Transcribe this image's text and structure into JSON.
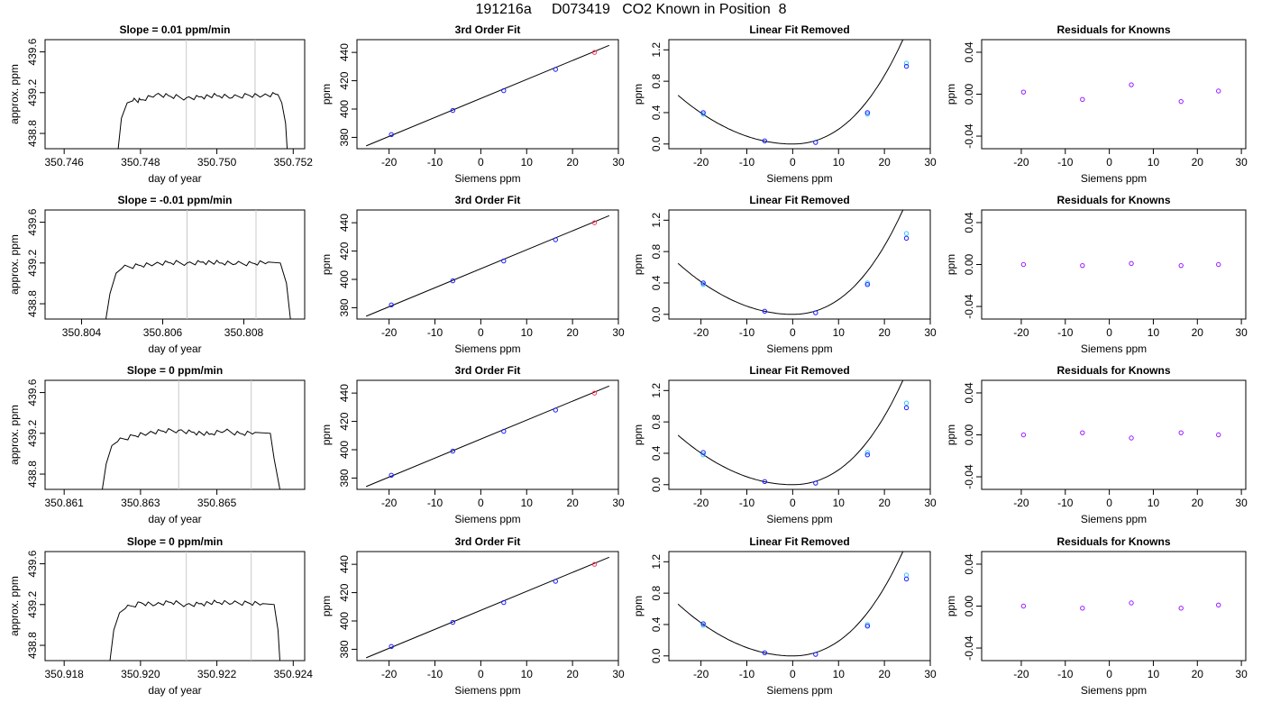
{
  "title": "191216a     D073419   CO2 Known in Position  8",
  "colors": {
    "curve": "#000000",
    "point_blue": "#1a1aff",
    "point_cyan": "#33c3ff",
    "point_red": "#ff3355",
    "point_purple": "#9a1aff",
    "vline": "#c8c8c8"
  },
  "chart_data": [
    {
      "panel": "timeseries",
      "row": 1,
      "type": "line",
      "title": "Slope =  0.01  ppm/min",
      "xlabel": "day of year",
      "ylabel": "approx. ppm",
      "xlim": [
        350.7455,
        350.7523
      ],
      "ylim": [
        438.65,
        439.72
      ],
      "xticks": [
        350.746,
        350.748,
        350.75,
        350.752
      ],
      "xtick_labels": [
        "350.746",
        "350.748",
        "350.750",
        "350.752"
      ],
      "yticks": [
        438.8,
        439.2,
        439.6
      ],
      "ytick_labels": [
        "438.8",
        "439.2",
        "439.6"
      ],
      "vlines": [
        350.7492,
        350.751
      ],
      "series": [
        {
          "x": [
            350.7474,
            350.7475,
            350.74765,
            350.7478,
            350.748,
            350.7484,
            350.7488,
            350.7492,
            350.7496,
            350.75,
            350.7504,
            350.7508,
            350.7512,
            350.7516,
            350.7517,
            350.7518,
            350.75185
          ],
          "y": [
            438.6,
            438.95,
            439.1,
            439.12,
            439.13,
            439.18,
            439.16,
            439.15,
            439.16,
            439.17,
            439.15,
            439.18,
            439.17,
            439.18,
            439.1,
            438.9,
            438.6
          ]
        }
      ]
    },
    {
      "panel": "fit",
      "row": 1,
      "type": "scatter",
      "title": "3rd Order Fit",
      "xlabel": "Siemens ppm",
      "ylabel": "ppm",
      "xlim": [
        -27,
        30
      ],
      "ylim": [
        372,
        449
      ],
      "xticks": [
        -20,
        -10,
        0,
        10,
        20,
        30
      ],
      "xtick_labels": [
        "-20",
        "-10",
        "0",
        "10",
        "20",
        "30"
      ],
      "yticks": [
        380,
        400,
        420,
        440
      ],
      "ytick_labels": [
        "380",
        "400",
        "420",
        "440"
      ],
      "points_x": [
        -19.5,
        -6.1,
        5.0,
        16.3,
        24.8
      ],
      "points_y": [
        382,
        399,
        413,
        428,
        440
      ],
      "curve": {
        "x": [
          -25,
          28
        ],
        "y": [
          374,
          445
        ]
      }
    },
    {
      "panel": "linear_removed",
      "row": 1,
      "type": "scatter",
      "title": "Linear Fit Removed",
      "xlabel": "Siemens ppm",
      "ylabel": "ppm",
      "xlim": [
        -27,
        30
      ],
      "ylim": [
        -0.06,
        1.33
      ],
      "xticks": [
        -20,
        -10,
        0,
        10,
        20,
        30
      ],
      "xtick_labels": [
        "-20",
        "-10",
        "0",
        "10",
        "20",
        "30"
      ],
      "yticks": [
        0.0,
        0.4,
        0.8,
        1.2
      ],
      "ytick_labels": [
        "0.0",
        "0.4",
        "0.8",
        "1.2"
      ],
      "points_x": [
        -19.5,
        -6.1,
        5.0,
        16.3,
        24.8
      ],
      "points_y": [
        0.4,
        0.04,
        0.02,
        0.4,
        0.99
      ],
      "alt_x": [
        -19.5,
        16.3,
        24.8
      ],
      "alt_y": [
        0.38,
        0.38,
        1.03
      ],
      "curve": {
        "x": [
          -25,
          28
        ],
        "y": [
          0.62,
          1.24
        ]
      }
    },
    {
      "panel": "residuals",
      "row": 1,
      "type": "scatter",
      "title": "Residuals for Knowns",
      "xlabel": "Siemens ppm",
      "ylabel": "ppm",
      "xlim": [
        -29,
        31
      ],
      "ylim": [
        -0.052,
        0.052
      ],
      "xticks": [
        -20,
        -10,
        0,
        10,
        20,
        30
      ],
      "xtick_labels": [
        "-20",
        "-10",
        "0",
        "10",
        "20",
        "30"
      ],
      "yticks": [
        -0.04,
        0.0,
        0.04
      ],
      "ytick_labels": [
        "-0.04",
        "0.00",
        "0.04"
      ],
      "points_x": [
        -19.5,
        -6.1,
        5.0,
        16.3,
        24.8
      ],
      "points_y": [
        0.002,
        -0.005,
        0.009,
        -0.007,
        0.003
      ]
    },
    {
      "panel": "timeseries",
      "row": 2,
      "type": "line",
      "title": "Slope =  -0.01  ppm/min",
      "xlabel": "day of year",
      "ylabel": "approx. ppm",
      "xlim": [
        350.8031,
        350.8095
      ],
      "ylim": [
        438.65,
        439.72
      ],
      "xticks": [
        350.804,
        350.806,
        350.808
      ],
      "xtick_labels": [
        "350.804",
        "350.806",
        "350.808"
      ],
      "vlines": [
        350.8066,
        350.8083
      ],
      "yticks": [
        438.8,
        439.2,
        439.6
      ],
      "ytick_labels": [
        "438.8",
        "439.2",
        "439.6"
      ],
      "series": [
        {
          "x": [
            350.8046,
            350.8047,
            350.80485,
            350.805,
            350.8054,
            350.8058,
            350.8062,
            350.8066,
            350.807,
            350.8074,
            350.8078,
            350.8082,
            350.8086,
            350.8089,
            350.80905,
            350.80915
          ],
          "y": [
            438.65,
            438.9,
            439.1,
            439.15,
            439.18,
            439.19,
            439.2,
            439.2,
            439.21,
            439.2,
            439.19,
            439.2,
            439.21,
            439.2,
            439.0,
            438.65
          ]
        }
      ]
    },
    {
      "panel": "fit",
      "row": 2,
      "type": "scatter",
      "title": "3rd Order Fit",
      "xlabel": "Siemens ppm",
      "ylabel": "ppm",
      "xlim": [
        -27,
        30
      ],
      "ylim": [
        372,
        449
      ],
      "xticks": [
        -20,
        -10,
        0,
        10,
        20,
        30
      ],
      "xtick_labels": [
        "-20",
        "-10",
        "0",
        "10",
        "20",
        "30"
      ],
      "yticks": [
        380,
        400,
        420,
        440
      ],
      "ytick_labels": [
        "380",
        "400",
        "420",
        "440"
      ],
      "points_x": [
        -19.5,
        -6.1,
        5.0,
        16.3,
        24.8
      ],
      "points_y": [
        382,
        399,
        413,
        428,
        440
      ],
      "curve": {
        "x": [
          -25,
          28
        ],
        "y": [
          374,
          445
        ]
      }
    },
    {
      "panel": "linear_removed",
      "row": 2,
      "type": "scatter",
      "title": "Linear Fit Removed",
      "xlabel": "Siemens ppm",
      "ylabel": "ppm",
      "xlim": [
        -27,
        30
      ],
      "ylim": [
        -0.06,
        1.33
      ],
      "xticks": [
        -20,
        -10,
        0,
        10,
        20,
        30
      ],
      "xtick_labels": [
        "-20",
        "-10",
        "0",
        "10",
        "20",
        "30"
      ],
      "yticks": [
        0.0,
        0.4,
        0.8,
        1.2
      ],
      "ytick_labels": [
        "0.0",
        "0.4",
        "0.8",
        "1.2"
      ],
      "points_x": [
        -19.5,
        -6.1,
        5.0,
        16.3,
        24.8
      ],
      "points_y": [
        0.4,
        0.04,
        0.02,
        0.38,
        0.97
      ],
      "alt_x": [
        -19.5,
        16.3,
        24.8
      ],
      "alt_y": [
        0.38,
        0.4,
        1.03
      ],
      "curve": {
        "x": [
          -25,
          28
        ],
        "y": [
          0.65,
          1.24
        ]
      }
    },
    {
      "panel": "residuals",
      "row": 2,
      "type": "scatter",
      "title": "Residuals for Knowns",
      "xlabel": "Siemens ppm",
      "ylabel": "ppm",
      "xlim": [
        -29,
        31
      ],
      "ylim": [
        -0.052,
        0.052
      ],
      "xticks": [
        -20,
        -10,
        0,
        10,
        20,
        30
      ],
      "xtick_labels": [
        "-20",
        "-10",
        "0",
        "10",
        "20",
        "30"
      ],
      "yticks": [
        -0.04,
        0.0,
        0.04
      ],
      "ytick_labels": [
        "-0.04",
        "0.00",
        "0.04"
      ],
      "points_x": [
        -19.5,
        -6.1,
        5.0,
        16.3,
        24.8
      ],
      "points_y": [
        0.0,
        -0.001,
        0.001,
        -0.001,
        0.0
      ]
    },
    {
      "panel": "timeseries",
      "row": 3,
      "type": "line",
      "title": "Slope =  0  ppm/min",
      "xlabel": "day of year",
      "ylabel": "approx. ppm",
      "xlim": [
        350.8605,
        350.8673
      ],
      "ylim": [
        438.65,
        439.72
      ],
      "xticks": [
        350.861,
        350.863,
        350.865
      ],
      "xtick_labels": [
        "350.861",
        "350.863",
        "350.865"
      ],
      "vlines": [
        350.864,
        350.8659
      ],
      "yticks": [
        438.8,
        439.2,
        439.6
      ],
      "ytick_labels": [
        "438.8",
        "439.2",
        "439.6"
      ],
      "series": [
        {
          "x": [
            350.862,
            350.8621,
            350.86225,
            350.8624,
            350.8628,
            350.8632,
            350.8636,
            350.864,
            350.8644,
            350.8648,
            350.8652,
            350.8656,
            350.866,
            350.8664,
            350.8665,
            350.86665
          ],
          "y": [
            438.65,
            438.9,
            439.08,
            439.12,
            439.18,
            439.2,
            439.22,
            439.23,
            439.21,
            439.19,
            439.22,
            439.2,
            439.21,
            439.2,
            438.95,
            438.65
          ]
        }
      ]
    },
    {
      "panel": "fit",
      "row": 3,
      "type": "scatter",
      "title": "3rd Order Fit",
      "xlabel": "Siemens ppm",
      "ylabel": "ppm",
      "xlim": [
        -27,
        30
      ],
      "ylim": [
        372,
        449
      ],
      "xticks": [
        -20,
        -10,
        0,
        10,
        20,
        30
      ],
      "xtick_labels": [
        "-20",
        "-10",
        "0",
        "10",
        "20",
        "30"
      ],
      "yticks": [
        380,
        400,
        420,
        440
      ],
      "ytick_labels": [
        "380",
        "400",
        "420",
        "440"
      ],
      "points_x": [
        -19.5,
        -6.1,
        5.0,
        16.3,
        24.8
      ],
      "points_y": [
        382,
        399,
        413,
        428,
        440
      ],
      "curve": {
        "x": [
          -25,
          28
        ],
        "y": [
          374,
          445
        ]
      }
    },
    {
      "panel": "linear_removed",
      "row": 3,
      "type": "scatter",
      "title": "Linear Fit Removed",
      "xlabel": "Siemens ppm",
      "ylabel": "ppm",
      "xlim": [
        -27,
        30
      ],
      "ylim": [
        -0.06,
        1.33
      ],
      "xticks": [
        -20,
        -10,
        0,
        10,
        20,
        30
      ],
      "xtick_labels": [
        "-20",
        "-10",
        "0",
        "10",
        "20",
        "30"
      ],
      "yticks": [
        0.0,
        0.4,
        0.8,
        1.2
      ],
      "ytick_labels": [
        "0.0",
        "0.4",
        "0.8",
        "1.2"
      ],
      "points_x": [
        -19.5,
        -6.1,
        5.0,
        16.3,
        24.8
      ],
      "points_y": [
        0.41,
        0.04,
        0.02,
        0.38,
        0.98
      ],
      "alt_x": [
        -19.5,
        16.3,
        24.8
      ],
      "alt_y": [
        0.38,
        0.41,
        1.04
      ],
      "curve": {
        "x": [
          -25,
          28
        ],
        "y": [
          0.63,
          1.24
        ]
      }
    },
    {
      "panel": "residuals",
      "row": 3,
      "type": "scatter",
      "title": "Residuals for Knowns",
      "xlabel": "Siemens ppm",
      "ylabel": "ppm",
      "xlim": [
        -29,
        31
      ],
      "ylim": [
        -0.052,
        0.052
      ],
      "xticks": [
        -20,
        -10,
        0,
        10,
        20,
        30
      ],
      "xtick_labels": [
        "-20",
        "-10",
        "0",
        "10",
        "20",
        "30"
      ],
      "yticks": [
        -0.04,
        0.0,
        0.04
      ],
      "ytick_labels": [
        "-0.04",
        "0.00",
        "0.04"
      ],
      "points_x": [
        -19.5,
        -6.1,
        5.0,
        16.3,
        24.8
      ],
      "points_y": [
        0.0,
        0.002,
        -0.003,
        0.002,
        0.0
      ]
    },
    {
      "panel": "timeseries",
      "row": 4,
      "type": "line",
      "title": "Slope =  0  ppm/min",
      "xlabel": "day of year",
      "ylabel": "approx. ppm",
      "xlim": [
        350.9175,
        350.9243
      ],
      "ylim": [
        438.65,
        439.72
      ],
      "xticks": [
        350.918,
        350.92,
        350.922,
        350.924
      ],
      "xtick_labels": [
        "350.918",
        "350.920",
        "350.922",
        "350.924"
      ],
      "vlines": [
        350.9212,
        350.9229
      ],
      "yticks": [
        438.8,
        439.2,
        439.6
      ],
      "ytick_labels": [
        "438.8",
        "439.2",
        "439.6"
      ],
      "series": [
        {
          "x": [
            350.9192,
            350.9193,
            350.91945,
            350.9196,
            350.92,
            350.9204,
            350.9208,
            350.9212,
            350.9216,
            350.922,
            350.9224,
            350.9228,
            350.9232,
            350.9235,
            350.9236,
            350.92365
          ],
          "y": [
            438.65,
            438.95,
            439.12,
            439.16,
            439.22,
            439.2,
            439.22,
            439.2,
            439.21,
            439.22,
            439.21,
            439.22,
            439.21,
            439.2,
            438.95,
            438.65
          ]
        }
      ]
    },
    {
      "panel": "fit",
      "row": 4,
      "type": "scatter",
      "title": "3rd Order Fit",
      "xlabel": "Siemens ppm",
      "ylabel": "ppm",
      "xlim": [
        -27,
        30
      ],
      "ylim": [
        372,
        449
      ],
      "xticks": [
        -20,
        -10,
        0,
        10,
        20,
        30
      ],
      "xtick_labels": [
        "-20",
        "-10",
        "0",
        "10",
        "20",
        "30"
      ],
      "yticks": [
        380,
        400,
        420,
        440
      ],
      "ytick_labels": [
        "380",
        "400",
        "420",
        "440"
      ],
      "points_x": [
        -19.5,
        -6.1,
        5.0,
        16.3,
        24.8
      ],
      "points_y": [
        382,
        399,
        413,
        428,
        440
      ],
      "curve": {
        "x": [
          -25,
          28
        ],
        "y": [
          374,
          445
        ]
      }
    },
    {
      "panel": "linear_removed",
      "row": 4,
      "type": "scatter",
      "title": "Linear Fit Removed",
      "xlabel": "Siemens ppm",
      "ylabel": "ppm",
      "xlim": [
        -27,
        30
      ],
      "ylim": [
        -0.06,
        1.33
      ],
      "xticks": [
        -20,
        -10,
        0,
        10,
        20,
        30
      ],
      "xtick_labels": [
        "-20",
        "-10",
        "0",
        "10",
        "20",
        "30"
      ],
      "yticks": [
        0.0,
        0.4,
        0.8,
        1.2
      ],
      "ytick_labels": [
        "0.0",
        "0.4",
        "0.8",
        "1.2"
      ],
      "points_x": [
        -19.5,
        -6.1,
        5.0,
        16.3,
        24.8
      ],
      "points_y": [
        0.41,
        0.04,
        0.02,
        0.38,
        0.98
      ],
      "alt_x": [
        -19.5,
        16.3,
        24.8
      ],
      "alt_y": [
        0.39,
        0.4,
        1.03
      ],
      "curve": {
        "x": [
          -25,
          28
        ],
        "y": [
          0.66,
          1.24
        ]
      }
    },
    {
      "panel": "residuals",
      "row": 4,
      "type": "scatter",
      "title": "Residuals for Knowns",
      "xlabel": "Siemens ppm",
      "ylabel": "ppm",
      "xlim": [
        -29,
        31
      ],
      "ylim": [
        -0.052,
        0.052
      ],
      "xticks": [
        -20,
        -10,
        0,
        10,
        20,
        30
      ],
      "xtick_labels": [
        "-20",
        "-10",
        "0",
        "10",
        "20",
        "30"
      ],
      "yticks": [
        -0.04,
        0.0,
        0.04
      ],
      "ytick_labels": [
        "-0.04",
        "0.00",
        "0.04"
      ],
      "points_x": [
        -19.5,
        -6.1,
        5.0,
        16.3,
        24.8
      ],
      "points_y": [
        0.0,
        -0.002,
        0.003,
        -0.002,
        0.001
      ]
    }
  ]
}
